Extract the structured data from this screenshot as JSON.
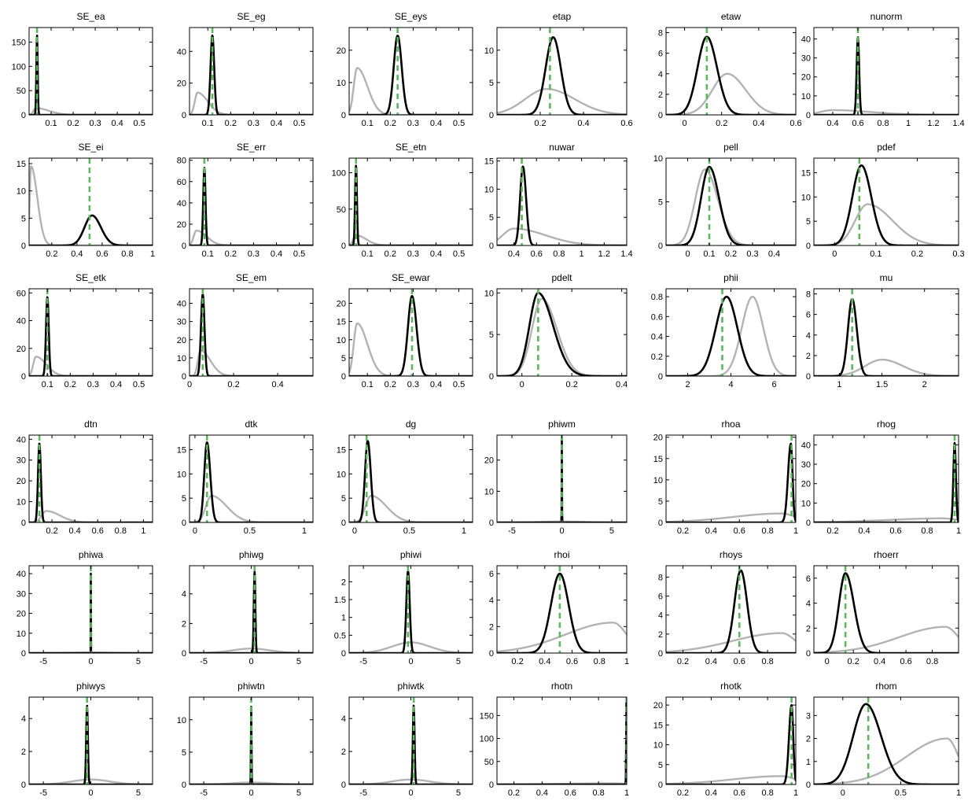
{
  "colors": {
    "posterior": "#000000",
    "prior": "#b3b3b3",
    "mode": "#5cb85c"
  },
  "chart_data": [
    {
      "title": "SE_ea",
      "xlim": [
        0,
        0.56
      ],
      "xticks": [
        0.1,
        0.2,
        0.3,
        0.4,
        0.5
      ],
      "ylim": [
        0,
        180
      ],
      "yticks": [
        0,
        50,
        100,
        150
      ],
      "prior": {
        "mode": 0.03,
        "peak": 14,
        "wl": 0.01,
        "wr": 0.06
      },
      "posterior": {
        "mode": 0.036,
        "peak": 165,
        "wl": 0.003,
        "wr": 0.003
      },
      "mode_line": 0.036
    },
    {
      "title": "SE_eg",
      "xlim": [
        0.02,
        0.56
      ],
      "xticks": [
        0.1,
        0.2,
        0.3,
        0.4,
        0.5
      ],
      "ylim": [
        0,
        55
      ],
      "yticks": [
        0,
        20,
        40
      ],
      "prior": {
        "mode": 0.055,
        "peak": 14,
        "wl": 0.012,
        "wr": 0.045
      },
      "posterior": {
        "mode": 0.12,
        "peak": 50,
        "wl": 0.008,
        "wr": 0.008
      },
      "mode_line": 0.12
    },
    {
      "title": "SE_eys",
      "xlim": [
        0.02,
        0.56
      ],
      "xticks": [
        0.1,
        0.2,
        0.3,
        0.4,
        0.5
      ],
      "ylim": [
        0,
        27
      ],
      "yticks": [
        0,
        10,
        20
      ],
      "prior": {
        "mode": 0.055,
        "peak": 14.5,
        "wl": 0.015,
        "wr": 0.045
      },
      "posterior": {
        "mode": 0.232,
        "peak": 24.5,
        "wl": 0.017,
        "wr": 0.018
      },
      "mode_line": 0.232
    },
    {
      "title": "etap",
      "xlim": [
        0,
        0.6
      ],
      "xticks": [
        0.2,
        0.4,
        0.6
      ],
      "ylim": [
        0,
        13.5
      ],
      "yticks": [
        0,
        5,
        10
      ],
      "prior": {
        "mode": 0.23,
        "peak": 4,
        "wl": 0.1,
        "wr": 0.13
      },
      "posterior": {
        "mode": 0.26,
        "peak": 12,
        "wl": 0.035,
        "wr": 0.035
      },
      "mode_line": 0.245
    },
    {
      "title": "etaw",
      "xlim": [
        -0.1,
        0.6
      ],
      "xticks": [
        0,
        0.2,
        0.4,
        0.6
      ],
      "ylim": [
        0,
        8.5
      ],
      "yticks": [
        0,
        2,
        4,
        6,
        8
      ],
      "prior": {
        "mode": 0.23,
        "peak": 4,
        "wl": 0.08,
        "wr": 0.1
      },
      "posterior": {
        "mode": 0.12,
        "peak": 7.6,
        "wl": 0.05,
        "wr": 0.055
      },
      "mode_line": 0.12
    },
    {
      "title": "nunorm",
      "xlim": [
        0.25,
        1.4
      ],
      "xticks": [
        0.4,
        0.6,
        0.8,
        1,
        1.2,
        1.4
      ],
      "ylim": [
        0,
        46
      ],
      "yticks": [
        0,
        10,
        20,
        30,
        40
      ],
      "prior": {
        "mode": 0.4,
        "peak": 2.5,
        "wl": 0.1,
        "wr": 0.3
      },
      "posterior": {
        "mode": 0.6,
        "peak": 41,
        "wl": 0.01,
        "wr": 0.01
      },
      "mode_line": 0.6
    },
    {
      "title": "SE_ei",
      "xlim": [
        0.02,
        1
      ],
      "xticks": [
        0.2,
        0.4,
        0.6,
        0.8,
        1
      ],
      "ylim": [
        0,
        16
      ],
      "yticks": [
        0,
        5,
        10,
        15
      ],
      "prior": {
        "mode": 0.035,
        "peak": 14.5,
        "wl": 0.01,
        "wr": 0.05
      },
      "posterior": {
        "mode": 0.52,
        "peak": 5.5,
        "wl": 0.06,
        "wr": 0.07
      },
      "mode_line": 0.5
    },
    {
      "title": "SE_err",
      "xlim": [
        0.02,
        0.56
      ],
      "xticks": [
        0.1,
        0.2,
        0.3,
        0.4,
        0.5
      ],
      "ylim": [
        0,
        82
      ],
      "yticks": [
        0,
        20,
        40,
        60,
        80
      ],
      "prior": {
        "mode": 0.05,
        "peak": 14,
        "wl": 0.012,
        "wr": 0.045
      },
      "posterior": {
        "mode": 0.085,
        "peak": 73,
        "wl": 0.005,
        "wr": 0.005
      },
      "mode_line": 0.085
    },
    {
      "title": "SE_etn",
      "xlim": [
        0.02,
        0.56
      ],
      "xticks": [
        0.1,
        0.2,
        0.3,
        0.4,
        0.5
      ],
      "ylim": [
        0,
        120
      ],
      "yticks": [
        0,
        50,
        100
      ],
      "prior": {
        "mode": 0.05,
        "peak": 14,
        "wl": 0.012,
        "wr": 0.045
      },
      "posterior": {
        "mode": 0.05,
        "peak": 110,
        "wl": 0.004,
        "wr": 0.004
      },
      "mode_line": 0.05
    },
    {
      "title": "nuwar",
      "xlim": [
        0.25,
        1.4
      ],
      "xticks": [
        0.4,
        0.6,
        0.8,
        1,
        1.2,
        1.4
      ],
      "ylim": [
        0,
        15.5
      ],
      "yticks": [
        0,
        5,
        10,
        15
      ],
      "prior": {
        "mode": 0.4,
        "peak": 3,
        "wl": 0.1,
        "wr": 0.28
      },
      "posterior": {
        "mode": 0.48,
        "peak": 14,
        "wl": 0.025,
        "wr": 0.028
      },
      "mode_line": 0.47
    },
    {
      "title": "pell",
      "xlim": [
        -0.1,
        0.5
      ],
      "xticks": [
        0,
        0.1,
        0.2,
        0.3,
        0.4
      ],
      "ylim": [
        0,
        10
      ],
      "yticks": [
        0,
        5,
        10
      ],
      "prior": {
        "mode": 0.08,
        "peak": 8.7,
        "wl": 0.045,
        "wr": 0.06
      },
      "posterior": {
        "mode": 0.1,
        "peak": 9,
        "wl": 0.038,
        "wr": 0.045
      },
      "mode_line": 0.1
    },
    {
      "title": "pdef",
      "xlim": [
        -0.05,
        0.3
      ],
      "xticks": [
        0,
        0.1,
        0.2,
        0.3
      ],
      "ylim": [
        0,
        18
      ],
      "yticks": [
        0,
        5,
        10,
        15
      ],
      "prior": {
        "mode": 0.08,
        "peak": 8.5,
        "wl": 0.03,
        "wr": 0.06
      },
      "posterior": {
        "mode": 0.065,
        "peak": 16.5,
        "wl": 0.022,
        "wr": 0.024
      },
      "mode_line": 0.06
    },
    {
      "title": "SE_etk",
      "xlim": [
        0.02,
        0.56
      ],
      "xticks": [
        0.1,
        0.2,
        0.3,
        0.4,
        0.5
      ],
      "ylim": [
        0,
        63
      ],
      "yticks": [
        0,
        20,
        40,
        60
      ],
      "prior": {
        "mode": 0.05,
        "peak": 14,
        "wl": 0.012,
        "wr": 0.045
      },
      "posterior": {
        "mode": 0.1,
        "peak": 57,
        "wl": 0.006,
        "wr": 0.006
      },
      "mode_line": 0.1
    },
    {
      "title": "SE_em",
      "xlim": [
        0,
        0.56
      ],
      "xticks": [
        0,
        0.2,
        0.4
      ],
      "ylim": [
        0,
        48
      ],
      "yticks": [
        0,
        10,
        20,
        30,
        40
      ],
      "prior": {
        "mode": 0.05,
        "peak": 14,
        "wl": 0.012,
        "wr": 0.045
      },
      "posterior": {
        "mode": 0.06,
        "peak": 45,
        "wl": 0.008,
        "wr": 0.008
      },
      "mode_line": 0.06
    },
    {
      "title": "SE_ewar",
      "xlim": [
        0.02,
        0.56
      ],
      "xticks": [
        0.1,
        0.2,
        0.3,
        0.4,
        0.5
      ],
      "ylim": [
        0,
        24
      ],
      "yticks": [
        0,
        5,
        10,
        15,
        20
      ],
      "prior": {
        "mode": 0.055,
        "peak": 14.5,
        "wl": 0.015,
        "wr": 0.045
      },
      "posterior": {
        "mode": 0.295,
        "peak": 22,
        "wl": 0.018,
        "wr": 0.02
      },
      "mode_line": 0.295
    },
    {
      "title": "pdelt",
      "xlim": [
        -0.1,
        0.42
      ],
      "xticks": [
        0,
        0.2,
        0.4
      ],
      "ylim": [
        0,
        10.5
      ],
      "yticks": [
        0,
        5,
        10
      ],
      "prior": {
        "mode": 0.08,
        "peak": 9.3,
        "wl": 0.04,
        "wr": 0.06
      },
      "posterior": {
        "mode": 0.065,
        "peak": 10,
        "wl": 0.035,
        "wr": 0.06
      },
      "mode_line": 0.065
    },
    {
      "title": "phii",
      "xlim": [
        1,
        7
      ],
      "xticks": [
        2,
        4,
        6
      ],
      "ylim": [
        0,
        0.88
      ],
      "yticks": [
        0,
        0.2,
        0.4,
        0.6,
        0.8
      ],
      "prior": {
        "mode": 5,
        "peak": 0.8,
        "wl": 0.5,
        "wr": 0.5
      },
      "posterior": {
        "mode": 3.8,
        "peak": 0.8,
        "wl": 0.5,
        "wr": 0.5
      },
      "mode_line": 3.6
    },
    {
      "title": "mu",
      "xlim": [
        0.7,
        2.4
      ],
      "xticks": [
        1,
        1.5,
        2
      ],
      "ylim": [
        0,
        8.5
      ],
      "yticks": [
        0,
        2,
        4,
        6,
        8
      ],
      "prior": {
        "mode": 1.5,
        "peak": 1.6,
        "wl": 0.2,
        "wr": 0.25
      },
      "posterior": {
        "mode": 1.15,
        "peak": 7.5,
        "wl": 0.05,
        "wr": 0.055
      },
      "mode_line": 1.15
    },
    {
      "title": "dtn",
      "xlim": [
        0,
        1.08
      ],
      "xticks": [
        0.2,
        0.4,
        0.6,
        0.8,
        1
      ],
      "ylim": [
        0,
        42
      ],
      "yticks": [
        0,
        10,
        20,
        30,
        40
      ],
      "prior": {
        "mode": 0.15,
        "peak": 5.5,
        "wl": 0.04,
        "wr": 0.12
      },
      "posterior": {
        "mode": 0.09,
        "peak": 38,
        "wl": 0.012,
        "wr": 0.013
      },
      "mode_line": 0.09
    },
    {
      "title": "dtk",
      "xlim": [
        -0.05,
        1.08
      ],
      "xticks": [
        0,
        0.5,
        1
      ],
      "ylim": [
        0,
        18
      ],
      "yticks": [
        0,
        5,
        10,
        15
      ],
      "prior": {
        "mode": 0.15,
        "peak": 5.5,
        "wl": 0.05,
        "wr": 0.14
      },
      "posterior": {
        "mode": 0.11,
        "peak": 16.5,
        "wl": 0.025,
        "wr": 0.03
      },
      "mode_line": 0.11
    },
    {
      "title": "dg",
      "xlim": [
        -0.05,
        1.08
      ],
      "xticks": [
        0,
        0.5,
        1
      ],
      "ylim": [
        0,
        18
      ],
      "yticks": [
        0,
        5,
        10,
        15
      ],
      "prior": {
        "mode": 0.15,
        "peak": 5.5,
        "wl": 0.05,
        "wr": 0.14
      },
      "posterior": {
        "mode": 0.12,
        "peak": 16.8,
        "wl": 0.025,
        "wr": 0.028
      },
      "mode_line": 0.11
    },
    {
      "title": "phiwm",
      "xlim": [
        -6.5,
        6.5
      ],
      "xticks": [
        -5,
        0,
        5
      ],
      "ylim": [
        0,
        28
      ],
      "yticks": [
        0,
        10,
        20
      ],
      "prior": {
        "mode": 0,
        "peak": 0.3,
        "wl": 2,
        "wr": 2
      },
      "posterior": {
        "mode": 0,
        "peak": 27,
        "wl": 0.015,
        "wr": 0.015
      },
      "mode_line": 0
    },
    {
      "title": "rhoa",
      "xlim": [
        0.08,
        1
      ],
      "xticks": [
        0.2,
        0.4,
        0.6,
        0.8,
        1
      ],
      "ylim": [
        0,
        20.5
      ],
      "yticks": [
        0,
        5,
        10,
        15,
        20
      ],
      "prior": {
        "mode": 0.9,
        "peak": 2.1,
        "wl": 0.35,
        "wr": 0.1
      },
      "posterior": {
        "mode": 0.965,
        "peak": 18.5,
        "wl": 0.02,
        "wr": 0.012
      },
      "mode_line": 0.97
    },
    {
      "title": "rhog",
      "xlim": [
        0.08,
        1
      ],
      "xticks": [
        0.2,
        0.4,
        0.6,
        0.8,
        1
      ],
      "ylim": [
        0,
        45
      ],
      "yticks": [
        0,
        10,
        20,
        30,
        40
      ],
      "prior": {
        "mode": 0.9,
        "peak": 2.1,
        "wl": 0.35,
        "wr": 0.1
      },
      "posterior": {
        "mode": 0.975,
        "peak": 41,
        "wl": 0.008,
        "wr": 0.008
      },
      "mode_line": 0.975
    },
    {
      "title": "phiwa",
      "xlim": [
        -6.5,
        6.5
      ],
      "xticks": [
        -5,
        0,
        5
      ],
      "ylim": [
        0,
        44
      ],
      "yticks": [
        0,
        10,
        20,
        30,
        40
      ],
      "prior": {
        "mode": 0,
        "peak": 0.3,
        "wl": 2,
        "wr": 2
      },
      "posterior": {
        "mode": 0,
        "peak": 40,
        "wl": 0.01,
        "wr": 0.01
      },
      "mode_line": 0
    },
    {
      "title": "phiwg",
      "xlim": [
        -6.5,
        6.5
      ],
      "xticks": [
        -5,
        0,
        5
      ],
      "ylim": [
        0,
        5.9
      ],
      "yticks": [
        0,
        2,
        4
      ],
      "prior": {
        "mode": 0,
        "peak": 0.3,
        "wl": 2,
        "wr": 2
      },
      "posterior": {
        "mode": 0.35,
        "peak": 5.5,
        "wl": 0.08,
        "wr": 0.08
      },
      "mode_line": 0.35
    },
    {
      "title": "phiwi",
      "xlim": [
        -6.5,
        6.5
      ],
      "xticks": [
        -5,
        0,
        5
      ],
      "ylim": [
        0,
        2.45
      ],
      "yticks": [
        0,
        0.5,
        1,
        1.5,
        2
      ],
      "prior": {
        "mode": 0,
        "peak": 0.3,
        "wl": 2,
        "wr": 2
      },
      "posterior": {
        "mode": -0.3,
        "peak": 2.3,
        "wl": 0.18,
        "wr": 0.18
      },
      "mode_line": -0.3
    },
    {
      "title": "rhoi",
      "xlim": [
        0.05,
        1
      ],
      "xticks": [
        0.2,
        0.4,
        0.6,
        0.8,
        1
      ],
      "ylim": [
        0,
        6.6
      ],
      "yticks": [
        0,
        2,
        4,
        6
      ],
      "prior": {
        "mode": 0.9,
        "peak": 2.3,
        "wl": 0.35,
        "wr": 0.1
      },
      "posterior": {
        "mode": 0.51,
        "peak": 6,
        "wl": 0.065,
        "wr": 0.065
      },
      "mode_line": 0.51
    },
    {
      "title": "rhoys",
      "xlim": [
        0.08,
        1
      ],
      "xticks": [
        0.2,
        0.4,
        0.6,
        0.8
      ],
      "ylim": [
        0,
        9.2
      ],
      "yticks": [
        0,
        2,
        4,
        6,
        8
      ],
      "prior": {
        "mode": 0.9,
        "peak": 2.1,
        "wl": 0.35,
        "wr": 0.1
      },
      "posterior": {
        "mode": 0.61,
        "peak": 8.7,
        "wl": 0.045,
        "wr": 0.045
      },
      "mode_line": 0.6
    },
    {
      "title": "rhoerr",
      "xlim": [
        -0.1,
        1
      ],
      "xticks": [
        0,
        0.2,
        0.4,
        0.6,
        0.8
      ],
      "ylim": [
        0,
        7
      ],
      "yticks": [
        0,
        2,
        4,
        6
      ],
      "prior": {
        "mode": 0.9,
        "peak": 2.1,
        "wl": 0.35,
        "wr": 0.1
      },
      "posterior": {
        "mode": 0.14,
        "peak": 6.4,
        "wl": 0.05,
        "wr": 0.065
      },
      "mode_line": 0.14
    },
    {
      "title": "phiwys",
      "xlim": [
        -6.5,
        6.5
      ],
      "xticks": [
        -5,
        0,
        5
      ],
      "ylim": [
        0,
        5.3
      ],
      "yticks": [
        0,
        2,
        4
      ],
      "prior": {
        "mode": 0,
        "peak": 0.3,
        "wl": 2,
        "wr": 2
      },
      "posterior": {
        "mode": -0.4,
        "peak": 4.8,
        "wl": 0.09,
        "wr": 0.09
      },
      "mode_line": -0.4
    },
    {
      "title": "phiwtn",
      "xlim": [
        -6.5,
        6.5
      ],
      "xticks": [
        -5,
        0,
        5
      ],
      "ylim": [
        0,
        13.5
      ],
      "yticks": [
        0,
        5,
        10
      ],
      "prior": {
        "mode": 0,
        "peak": 0.3,
        "wl": 2,
        "wr": 2
      },
      "posterior": {
        "mode": 0,
        "peak": 12,
        "wl": 0.03,
        "wr": 0.03
      },
      "mode_line": 0
    },
    {
      "title": "phiwtk",
      "xlim": [
        -6.5,
        6.5
      ],
      "xticks": [
        -5,
        0,
        5
      ],
      "ylim": [
        0,
        5.3
      ],
      "yticks": [
        0,
        2,
        4
      ],
      "prior": {
        "mode": 0,
        "peak": 0.3,
        "wl": 2,
        "wr": 2
      },
      "posterior": {
        "mode": 0.3,
        "peak": 4.8,
        "wl": 0.09,
        "wr": 0.09
      },
      "mode_line": 0.3
    },
    {
      "title": "rhotn",
      "xlim": [
        0.08,
        1
      ],
      "xticks": [
        0.2,
        0.4,
        0.6,
        0.8,
        1
      ],
      "ylim": [
        0,
        190
      ],
      "yticks": [
        0,
        50,
        100,
        150
      ],
      "prior": {
        "mode": 0.9,
        "peak": 2.5,
        "wl": 0.35,
        "wr": 0.1
      },
      "posterior": {
        "mode": 0.998,
        "peak": 180,
        "wl": 0.002,
        "wr": 0.001
      },
      "mode_line": 0.998
    },
    {
      "title": "rhotk",
      "xlim": [
        0.08,
        1
      ],
      "xticks": [
        0.2,
        0.4,
        0.6,
        0.8,
        1
      ],
      "ylim": [
        0,
        22
      ],
      "yticks": [
        0,
        5,
        10,
        15,
        20
      ],
      "prior": {
        "mode": 0.9,
        "peak": 2.1,
        "wl": 0.35,
        "wr": 0.1
      },
      "posterior": {
        "mode": 0.97,
        "peak": 20,
        "wl": 0.018,
        "wr": 0.012
      },
      "mode_line": 0.97
    },
    {
      "title": "rhom",
      "xlim": [
        -0.25,
        1
      ],
      "xticks": [
        0,
        0.5,
        1
      ],
      "ylim": [
        0,
        3.8
      ],
      "yticks": [
        0,
        1,
        2,
        3
      ],
      "prior": {
        "mode": 0.9,
        "peak": 2,
        "wl": 0.35,
        "wr": 0.1
      },
      "posterior": {
        "mode": 0.2,
        "peak": 3.5,
        "wl": 0.11,
        "wr": 0.13
      },
      "mode_line": 0.22
    }
  ]
}
